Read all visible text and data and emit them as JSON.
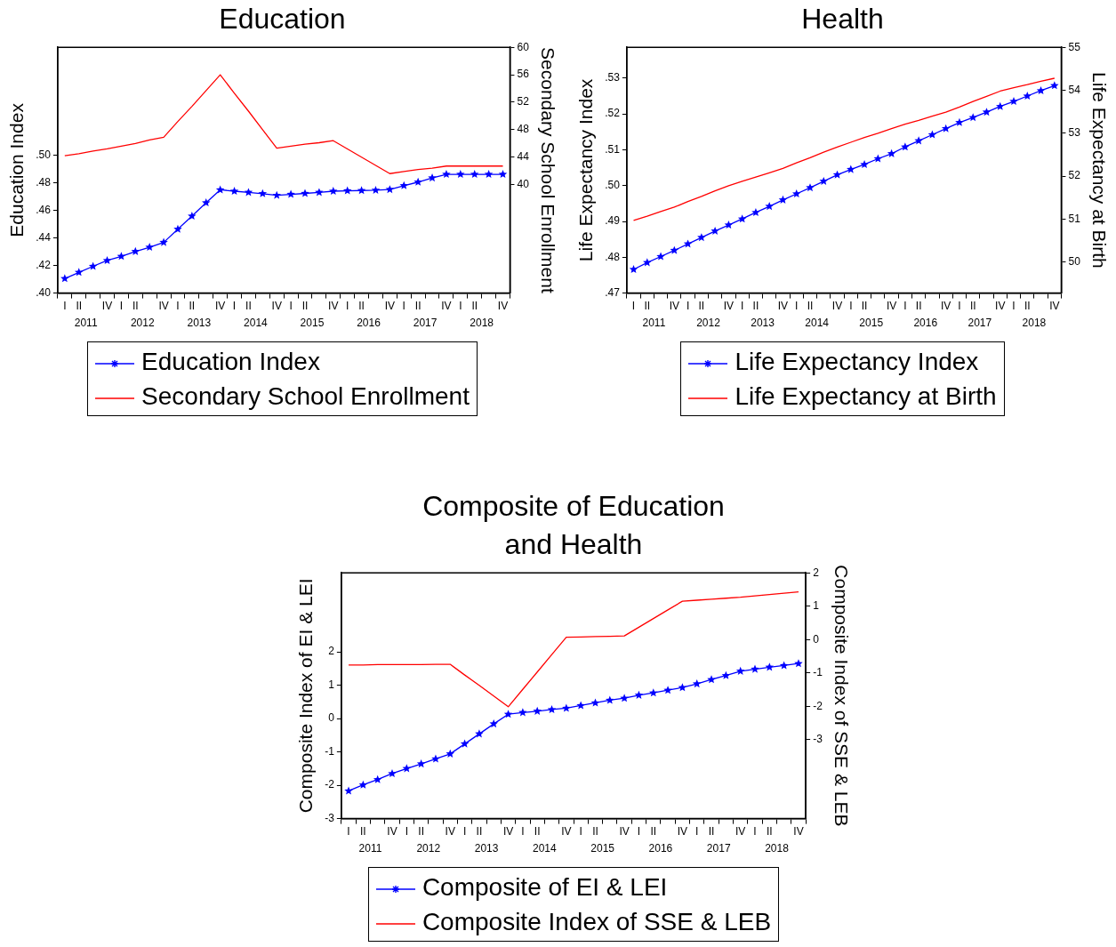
{
  "chart_data": [
    {
      "type": "line",
      "title": "Education",
      "ylabel": "Education Index",
      "y2label": "Secondary School Enrollment",
      "legend": "bottom",
      "categories": [
        "I",
        "II",
        null,
        "IV",
        "I",
        "II",
        null,
        "IV",
        "I",
        "II",
        null,
        "IV",
        "I",
        "II",
        null,
        "IV",
        "I",
        "II",
        null,
        "IV",
        "I",
        "II",
        null,
        "IV",
        "I",
        "II",
        null,
        "IV",
        "I",
        "II",
        null,
        "IV"
      ],
      "annotations": [
        "2011",
        "2012",
        "2013",
        "2014",
        "2015",
        "2016",
        "2017",
        "2018"
      ],
      "ylim": [
        0.4,
        0.578
      ],
      "yticks": [
        {
          "value": 0.4,
          "label": ".40"
        },
        {
          "value": 0.42,
          "label": ".42"
        },
        {
          "value": 0.44,
          "label": ".44"
        },
        {
          "value": 0.46,
          "label": ".46"
        },
        {
          "value": 0.48,
          "label": ".48"
        },
        {
          "value": 0.5,
          "label": ".50"
        }
      ],
      "y2lim": [
        24.2,
        60
      ],
      "y2ticks": [
        40,
        44,
        48,
        52,
        56,
        60
      ],
      "series": [
        {
          "name": "Education Index",
          "color": "#0000ff",
          "marker": "star",
          "values": [
            0.4105,
            0.415,
            0.4194,
            0.4236,
            0.4266,
            0.4301,
            0.4332,
            0.4367,
            0.4463,
            0.4558,
            0.4654,
            0.4748,
            0.4738,
            0.4729,
            0.472,
            0.4708,
            0.4715,
            0.4722,
            0.4729,
            0.4738,
            0.4741,
            0.4743,
            0.4745,
            0.475,
            0.4778,
            0.4804,
            0.4834,
            0.486,
            0.486,
            0.486,
            0.486,
            0.486
          ]
        },
        {
          "name": "Secondary School Enrollment",
          "color": "#ff0000",
          "marker": "none",
          "axis": "y2",
          "values": [
            44.2,
            44.5,
            44.9,
            45.2,
            45.6,
            46.0,
            46.5,
            46.9,
            49.2,
            51.4,
            53.7,
            56.0,
            53.3,
            50.7,
            48.0,
            45.3,
            45.6,
            45.9,
            46.1,
            46.4,
            45.2,
            44.0,
            42.8,
            41.6,
            41.9,
            42.2,
            42.4,
            42.7,
            42.7,
            42.7,
            42.7,
            42.7
          ]
        }
      ]
    },
    {
      "type": "line",
      "title": "Health",
      "ylabel": "Life Expectancy Index",
      "y2label": "Life Expectancy at Birth",
      "legend": "bottom",
      "categories": [
        "I",
        "II",
        null,
        "IV",
        "I",
        "II",
        null,
        "IV",
        "I",
        "II",
        null,
        "IV",
        "I",
        "II",
        null,
        "IV",
        "I",
        "II",
        null,
        "IV",
        "I",
        "II",
        null,
        "IV",
        "I",
        "II",
        null,
        "IV",
        "I",
        "II",
        null,
        "IV"
      ],
      "annotations": [
        "2011",
        "2012",
        "2013",
        "2014",
        "2015",
        "2016",
        "2017",
        "2018"
      ],
      "ylim": [
        0.47,
        0.5386
      ],
      "yticks": [
        {
          "value": 0.47,
          "label": ".47"
        },
        {
          "value": 0.48,
          "label": ".48"
        },
        {
          "value": 0.49,
          "label": ".49"
        },
        {
          "value": 0.5,
          "label": ".50"
        },
        {
          "value": 0.51,
          "label": ".51"
        },
        {
          "value": 0.52,
          "label": ".52"
        },
        {
          "value": 0.53,
          "label": ".53"
        }
      ],
      "y2lim": [
        49.28,
        55
      ],
      "y2ticks": [
        50,
        51,
        52,
        53,
        54,
        55
      ],
      "series": [
        {
          "name": "Life Expectancy Index",
          "color": "#0000ff",
          "marker": "star",
          "values": [
            0.4766,
            0.4785,
            0.4802,
            0.4819,
            0.4837,
            0.4855,
            0.4873,
            0.489,
            0.4907,
            0.4925,
            0.4942,
            0.496,
            0.4977,
            0.4994,
            0.5012,
            0.503,
            0.5045,
            0.5059,
            0.5075,
            0.5089,
            0.5108,
            0.5125,
            0.5142,
            0.5159,
            0.5176,
            0.519,
            0.5205,
            0.5221,
            0.5235,
            0.525,
            0.5265,
            0.5279
          ]
        },
        {
          "name": "Life Expectancy at Birth",
          "color": "#ff0000",
          "marker": "none",
          "axis": "y2",
          "values": [
            50.97,
            51.07,
            51.18,
            51.28,
            51.41,
            51.53,
            51.66,
            51.78,
            51.88,
            51.98,
            52.08,
            52.18,
            52.31,
            52.43,
            52.56,
            52.68,
            52.79,
            52.9,
            53.0,
            53.11,
            53.21,
            53.3,
            53.4,
            53.49,
            53.61,
            53.74,
            53.86,
            53.98,
            54.06,
            54.13,
            54.21,
            54.28
          ]
        }
      ]
    },
    {
      "type": "line",
      "title": "Composite of Education and Health",
      "ylabel": "Composite Index of EI & LEI",
      "y2label": "Composite Index of SSE & LEB",
      "legend": "bottom",
      "categories": [
        "I",
        "II",
        null,
        "IV",
        "I",
        "II",
        null,
        "IV",
        "I",
        "II",
        null,
        "IV",
        "I",
        "II",
        null,
        "IV",
        "I",
        "II",
        null,
        "IV",
        "I",
        "II",
        null,
        "IV",
        "I",
        "II",
        null,
        "IV",
        "I",
        "II",
        null,
        "IV"
      ],
      "annotations": [
        "2011",
        "2012",
        "2013",
        "2014",
        "2015",
        "2016",
        "2017",
        "2018"
      ],
      "ylim": [
        -3,
        4.37
      ],
      "yticks": [
        -3,
        -2,
        -1,
        0,
        1,
        2
      ],
      "y2lim": [
        -5.36,
        2
      ],
      "y2ticks": [
        -3,
        -2,
        -1,
        0,
        1,
        2
      ],
      "series": [
        {
          "name": "Composite of EI & LEI",
          "color": "#0000ff",
          "marker": "star",
          "values": [
            -2.17,
            -1.99,
            -1.83,
            -1.65,
            -1.5,
            -1.36,
            -1.21,
            -1.06,
            -0.76,
            -0.46,
            -0.16,
            0.13,
            0.18,
            0.22,
            0.27,
            0.31,
            0.39,
            0.47,
            0.55,
            0.61,
            0.7,
            0.77,
            0.85,
            0.93,
            1.04,
            1.17,
            1.29,
            1.42,
            1.48,
            1.54,
            1.59,
            1.65
          ]
        },
        {
          "name": "Composite Index of SSE & LEB",
          "color": "#ff0000",
          "marker": "none",
          "axis": "y2",
          "values": [
            -0.76,
            -0.76,
            -0.75,
            -0.75,
            -0.75,
            -0.75,
            -0.74,
            -0.74,
            -1.06,
            -1.37,
            -1.69,
            -2.01,
            -1.49,
            -0.97,
            -0.45,
            0.07,
            0.08,
            0.09,
            0.1,
            0.11,
            0.37,
            0.63,
            0.89,
            1.15,
            1.18,
            1.21,
            1.24,
            1.27,
            1.31,
            1.35,
            1.39,
            1.43
          ]
        }
      ]
    }
  ]
}
